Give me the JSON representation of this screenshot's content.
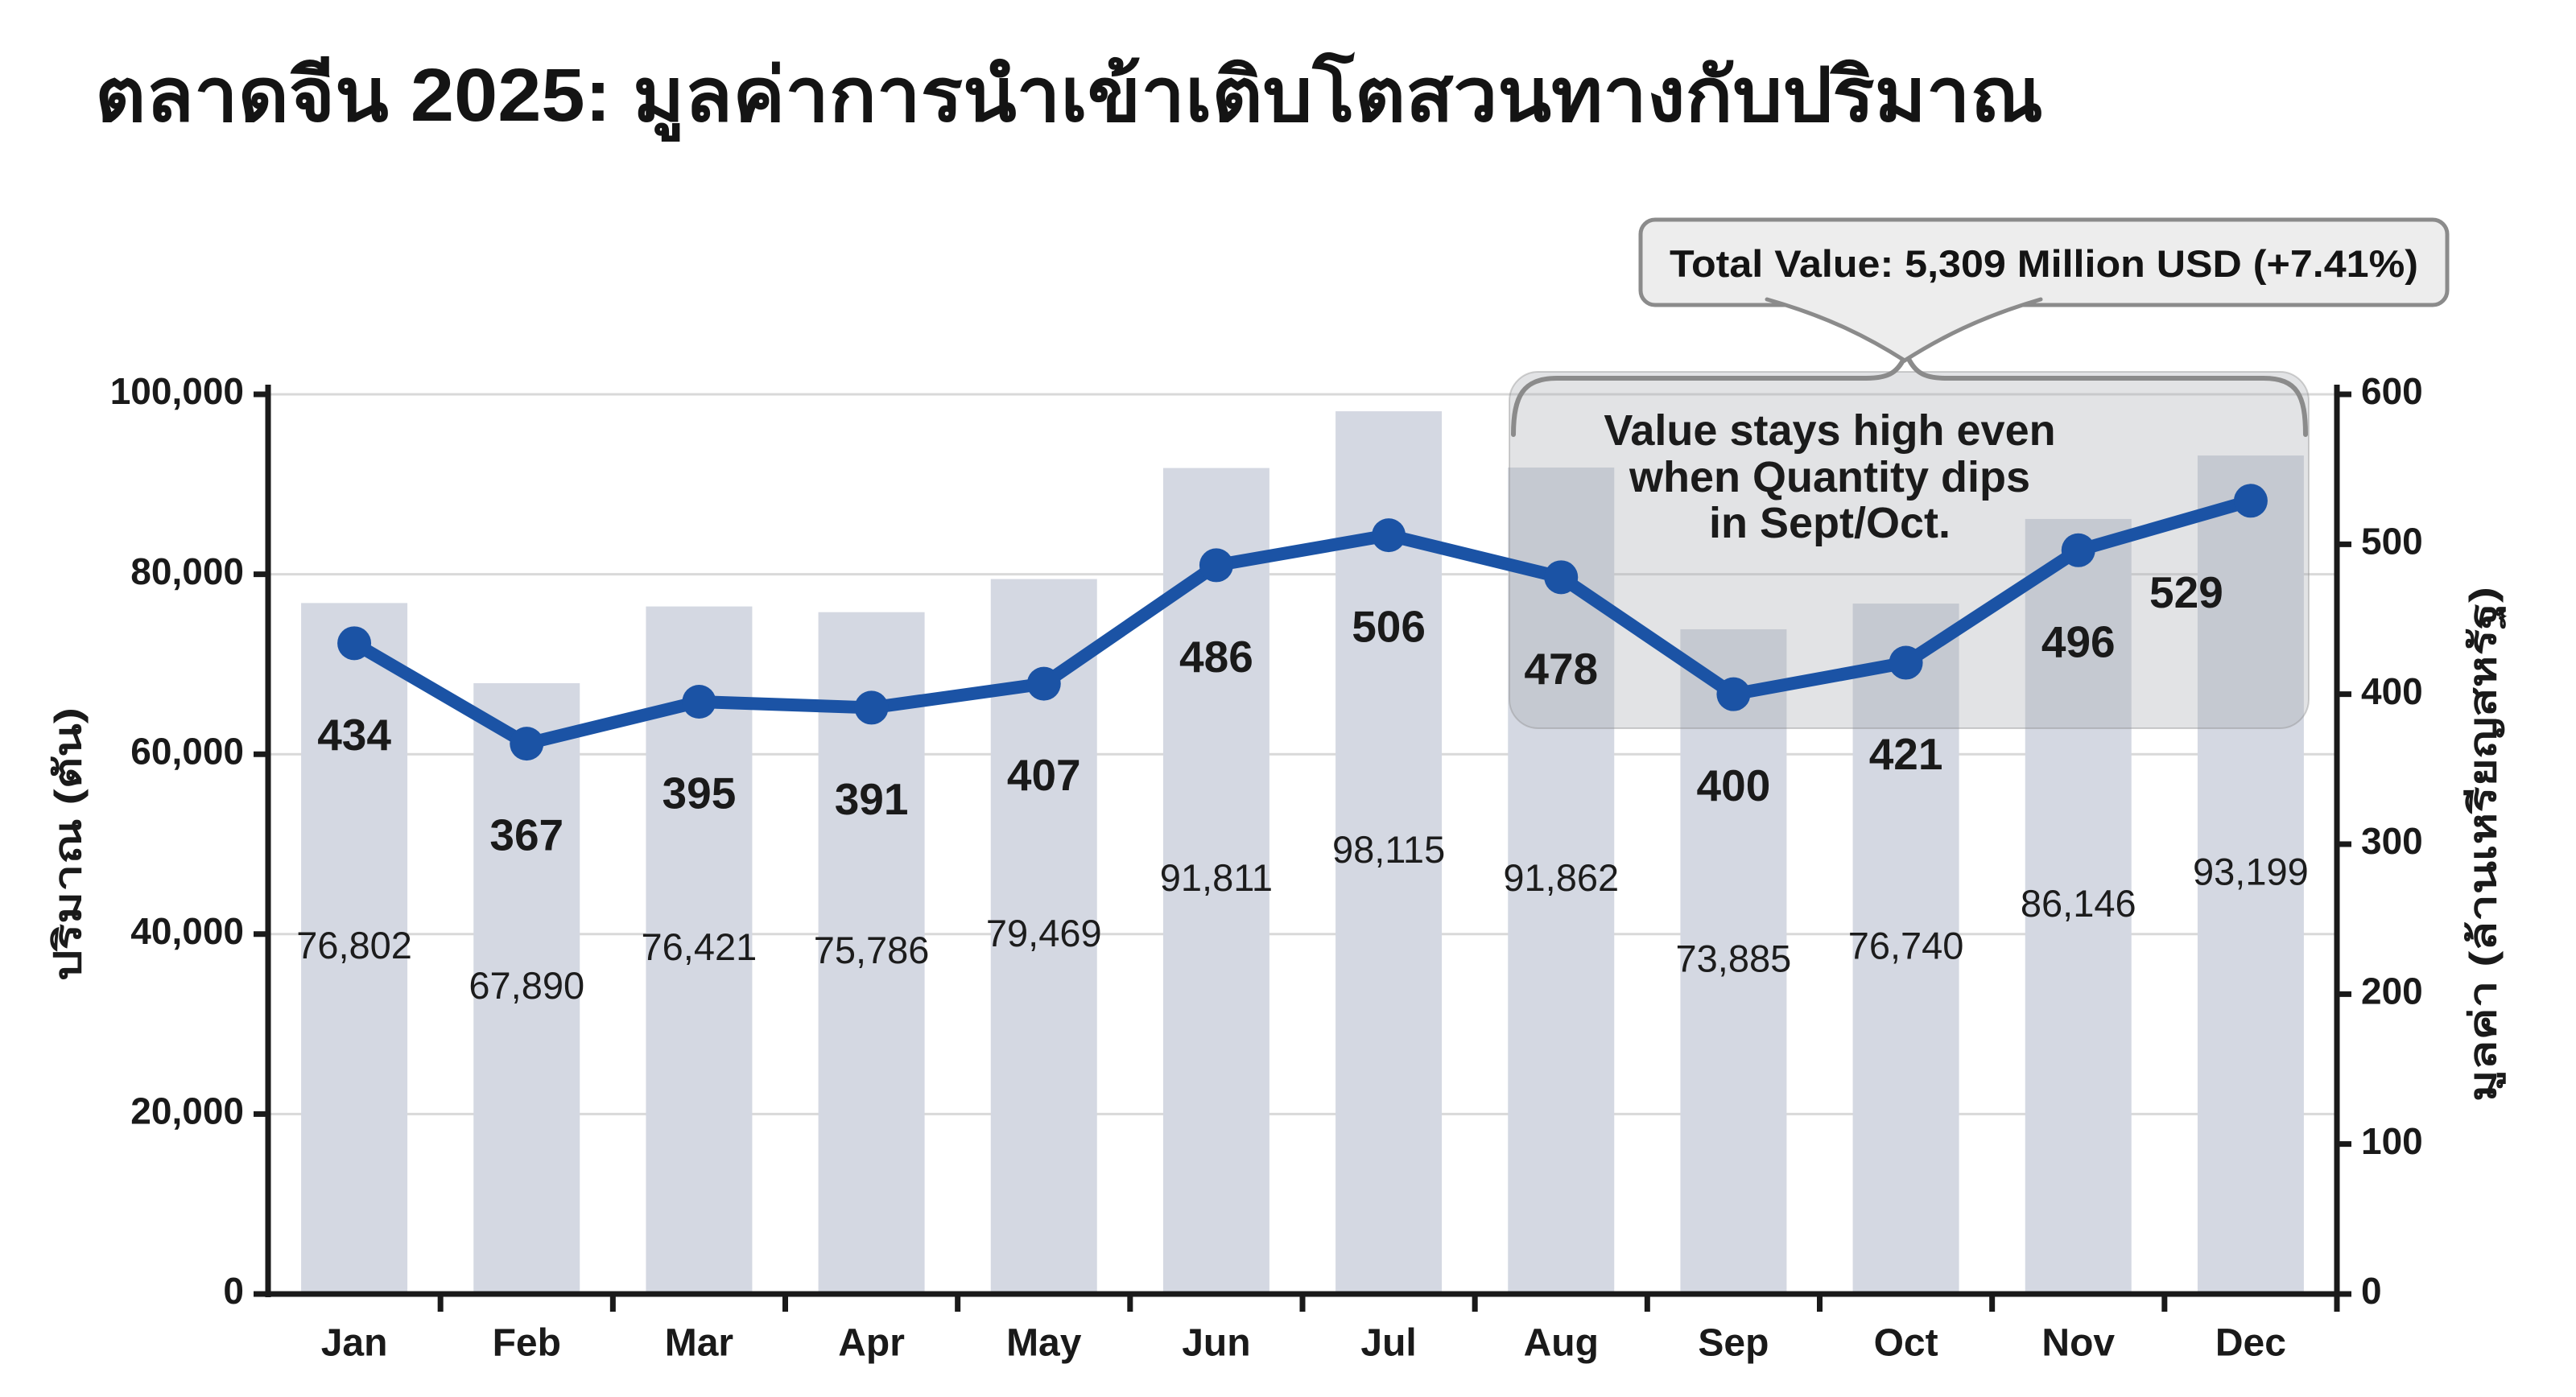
{
  "title": "ตลาดจีน 2025: มูลค่าการนำเข้าเติบโตสวนทางกับปริมาณ",
  "callout": {
    "label": "Total Value: 5,309 Million USD (+7.41%)"
  },
  "annotation": {
    "lines": [
      "Value stays high even",
      "when Quantity dips",
      "in Sept/Oct."
    ]
  },
  "chart_data": {
    "type": "bar+line",
    "categories": [
      "Jan",
      "Feb",
      "Mar",
      "Apr",
      "May",
      "Jun",
      "Jul",
      "Aug",
      "Sep",
      "Oct",
      "Nov",
      "Dec"
    ],
    "series": [
      {
        "name": "ปริมาณ (ตัน)",
        "type": "bar",
        "axis": "left",
        "values": [
          76802,
          67890,
          76421,
          75786,
          79469,
          91811,
          98115,
          91862,
          73885,
          76740,
          86146,
          93199
        ]
      },
      {
        "name": "มูลค่า (ล้านเหรียญสหรัฐ)",
        "type": "line",
        "axis": "right",
        "values": [
          434,
          367,
          395,
          391,
          407,
          486,
          506,
          478,
          400,
          421,
          496,
          529
        ]
      }
    ],
    "left_axis": {
      "label": "ปริมาณ (ตัน)",
      "min": 0,
      "max": 100000,
      "step": 20000
    },
    "right_axis": {
      "label": "มูลค่า (ล้านเหรียญสหรัฐ)",
      "min": 0,
      "max": 600,
      "step": 100
    },
    "highlight_region": {
      "from": "Aug",
      "to": "Dec"
    },
    "grid": true,
    "legend": false,
    "total_value_note": "Total Value: 5,309 Million USD (+7.41%)"
  },
  "colors": {
    "background": "#ffffff",
    "bar": "#d4d8e2",
    "line": "#1b53a5",
    "grid": "#d9d9d9",
    "axis": "#1a1a1a",
    "text": "#1a1a1a",
    "bar_label": "#1c1c1c",
    "highlight_fill": "rgba(168,170,176,0.33)",
    "highlight_border": "rgba(140,140,140,0.4)",
    "callout_fill": "#ededed",
    "callout_border": "#8b8b8b"
  }
}
